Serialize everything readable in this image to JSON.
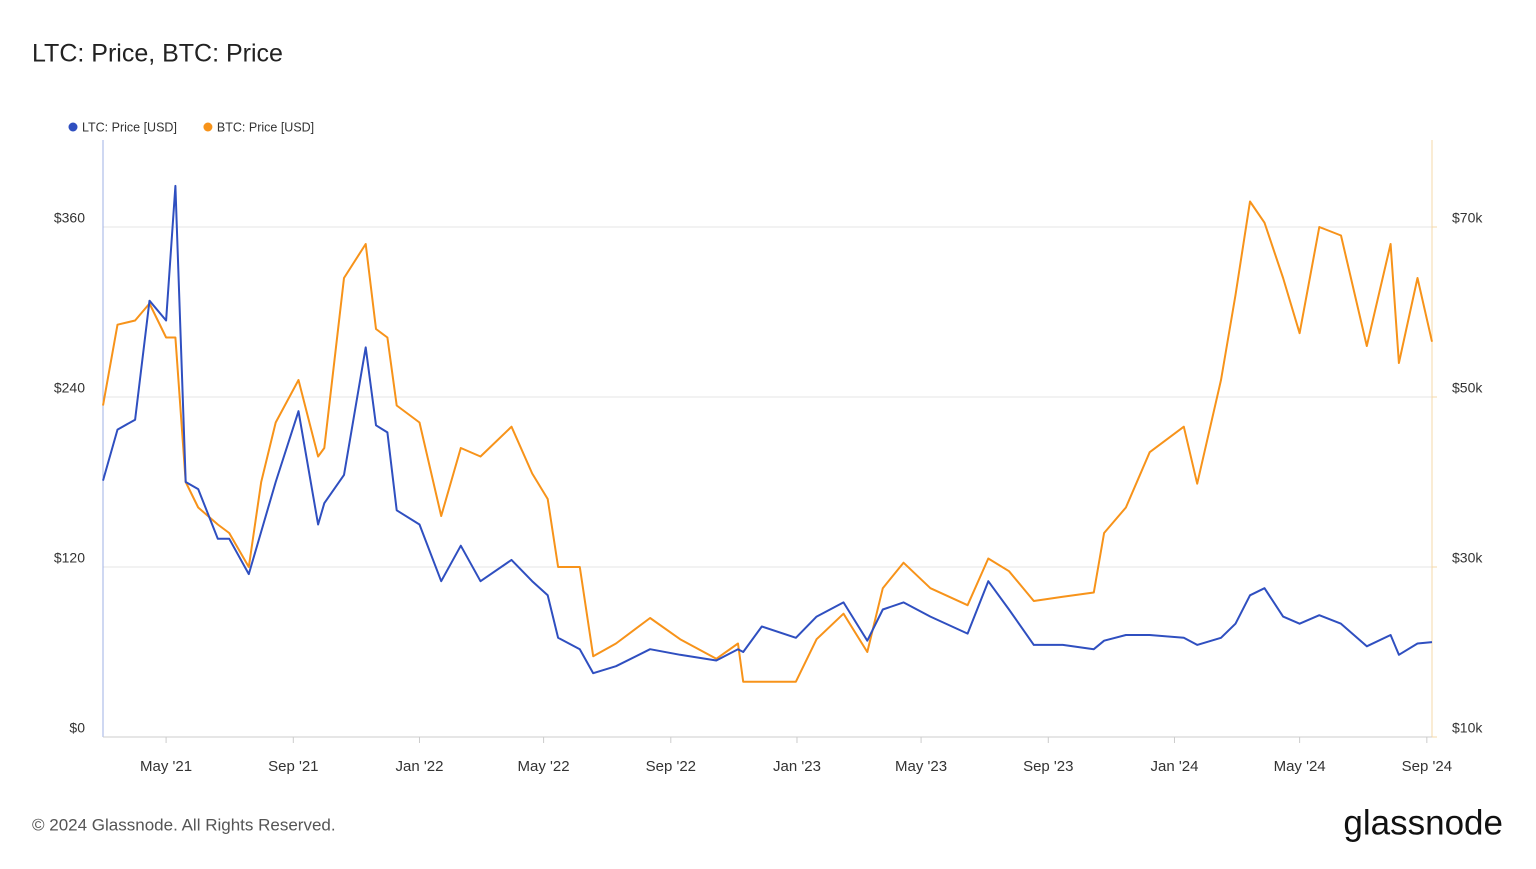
{
  "chart_data": {
    "type": "line",
    "title": "LTC: Price, BTC: Price",
    "x": [
      "2021-03-01",
      "2021-03-15",
      "2021-04-01",
      "2021-04-15",
      "2021-05-01",
      "2021-05-10",
      "2021-05-20",
      "2021-06-01",
      "2021-06-20",
      "2021-07-01",
      "2021-07-20",
      "2021-08-01",
      "2021-08-15",
      "2021-09-06",
      "2021-09-25",
      "2021-10-01",
      "2021-10-20",
      "2021-11-10",
      "2021-11-20",
      "2021-12-01",
      "2021-12-10",
      "2022-01-01",
      "2022-01-22",
      "2022-02-10",
      "2022-03-01",
      "2022-03-31",
      "2022-04-20",
      "2022-05-05",
      "2022-05-15",
      "2022-06-05",
      "2022-06-18",
      "2022-07-10",
      "2022-08-12",
      "2022-09-10",
      "2022-10-15",
      "2022-11-05",
      "2022-11-10",
      "2022-11-28",
      "2022-12-31",
      "2023-01-20",
      "2023-02-15",
      "2023-03-10",
      "2023-03-25",
      "2023-04-14",
      "2023-05-10",
      "2023-06-15",
      "2023-07-05",
      "2023-07-25",
      "2023-08-18",
      "2023-09-15",
      "2023-10-15",
      "2023-10-25",
      "2023-11-15",
      "2023-12-08",
      "2024-01-10",
      "2024-01-23",
      "2024-02-15",
      "2024-02-29",
      "2024-03-14",
      "2024-03-28",
      "2024-04-15",
      "2024-05-01",
      "2024-05-20",
      "2024-06-10",
      "2024-07-05",
      "2024-07-28",
      "2024-08-05",
      "2024-08-23",
      "2024-09-06"
    ],
    "xlim": [
      "2021-03-01",
      "2024-09-06"
    ],
    "xticks": [
      {
        "value": "2021-05-01",
        "label": "May '21"
      },
      {
        "value": "2021-09-01",
        "label": "Sep '21"
      },
      {
        "value": "2022-01-01",
        "label": "Jan '22"
      },
      {
        "value": "2022-05-01",
        "label": "May '22"
      },
      {
        "value": "2022-09-01",
        "label": "Sep '22"
      },
      {
        "value": "2023-01-01",
        "label": "Jan '23"
      },
      {
        "value": "2023-05-01",
        "label": "May '23"
      },
      {
        "value": "2023-09-01",
        "label": "Sep '23"
      },
      {
        "value": "2024-01-01",
        "label": "Jan '24"
      },
      {
        "value": "2024-05-01",
        "label": "May '24"
      },
      {
        "value": "2024-09-01",
        "label": "Sep '24"
      }
    ],
    "ylim": [
      0,
      421.4
    ],
    "yticks": [
      {
        "value": 0,
        "label": "$0"
      },
      {
        "value": 120,
        "label": "$120"
      },
      {
        "value": 240,
        "label": "$240"
      },
      {
        "value": 360,
        "label": "$360"
      }
    ],
    "y2lim": [
      10000,
      80235
    ],
    "y2ticks": [
      {
        "value": 10000,
        "label": "$10k"
      },
      {
        "value": 30000,
        "label": "$30k"
      },
      {
        "value": 50000,
        "label": "$50k"
      },
      {
        "value": 70000,
        "label": "$70k"
      }
    ],
    "grid": true,
    "legend": "top-left",
    "series": [
      {
        "name": "LTC: Price [USD]",
        "color": "#2f4fc0",
        "axis": "y",
        "values": [
          181,
          217,
          224,
          308,
          294,
          389,
          180,
          175,
          140,
          140,
          115,
          145,
          180,
          230,
          150,
          165,
          185,
          275,
          220,
          215,
          160,
          150,
          110,
          135,
          110,
          125,
          110,
          100,
          70,
          62,
          45,
          50,
          62,
          58,
          54,
          62,
          60,
          78,
          70,
          85,
          95,
          68,
          90,
          95,
          85,
          73,
          110,
          90,
          65,
          65,
          62,
          68,
          72,
          72,
          70,
          65,
          70,
          80,
          100,
          105,
          85,
          80,
          86,
          80,
          64,
          72,
          58,
          66,
          67
        ]
      },
      {
        "name": "BTC: Price [USD]",
        "color": "#f7931a",
        "axis": "y2",
        "values": [
          49000,
          58500,
          59000,
          61000,
          57000,
          57000,
          40000,
          37000,
          35000,
          34000,
          30000,
          40000,
          47000,
          52000,
          43000,
          44000,
          64000,
          68000,
          58000,
          57000,
          49000,
          47000,
          36000,
          44000,
          43000,
          46500,
          41000,
          38000,
          30000,
          30000,
          19500,
          21000,
          24000,
          21500,
          19200,
          21000,
          16500,
          16500,
          16500,
          21500,
          24500,
          20000,
          27500,
          30500,
          27500,
          25500,
          31000,
          29500,
          26000,
          26500,
          27000,
          34000,
          37000,
          43500,
          46500,
          39800,
          52000,
          62000,
          73000,
          70500,
          64000,
          57500,
          70000,
          69000,
          56000,
          68000,
          54000,
          64000,
          56500
        ]
      }
    ]
  },
  "footer": {
    "copyright": "© 2024 Glassnode. All Rights Reserved.",
    "logo": "glassnode"
  }
}
